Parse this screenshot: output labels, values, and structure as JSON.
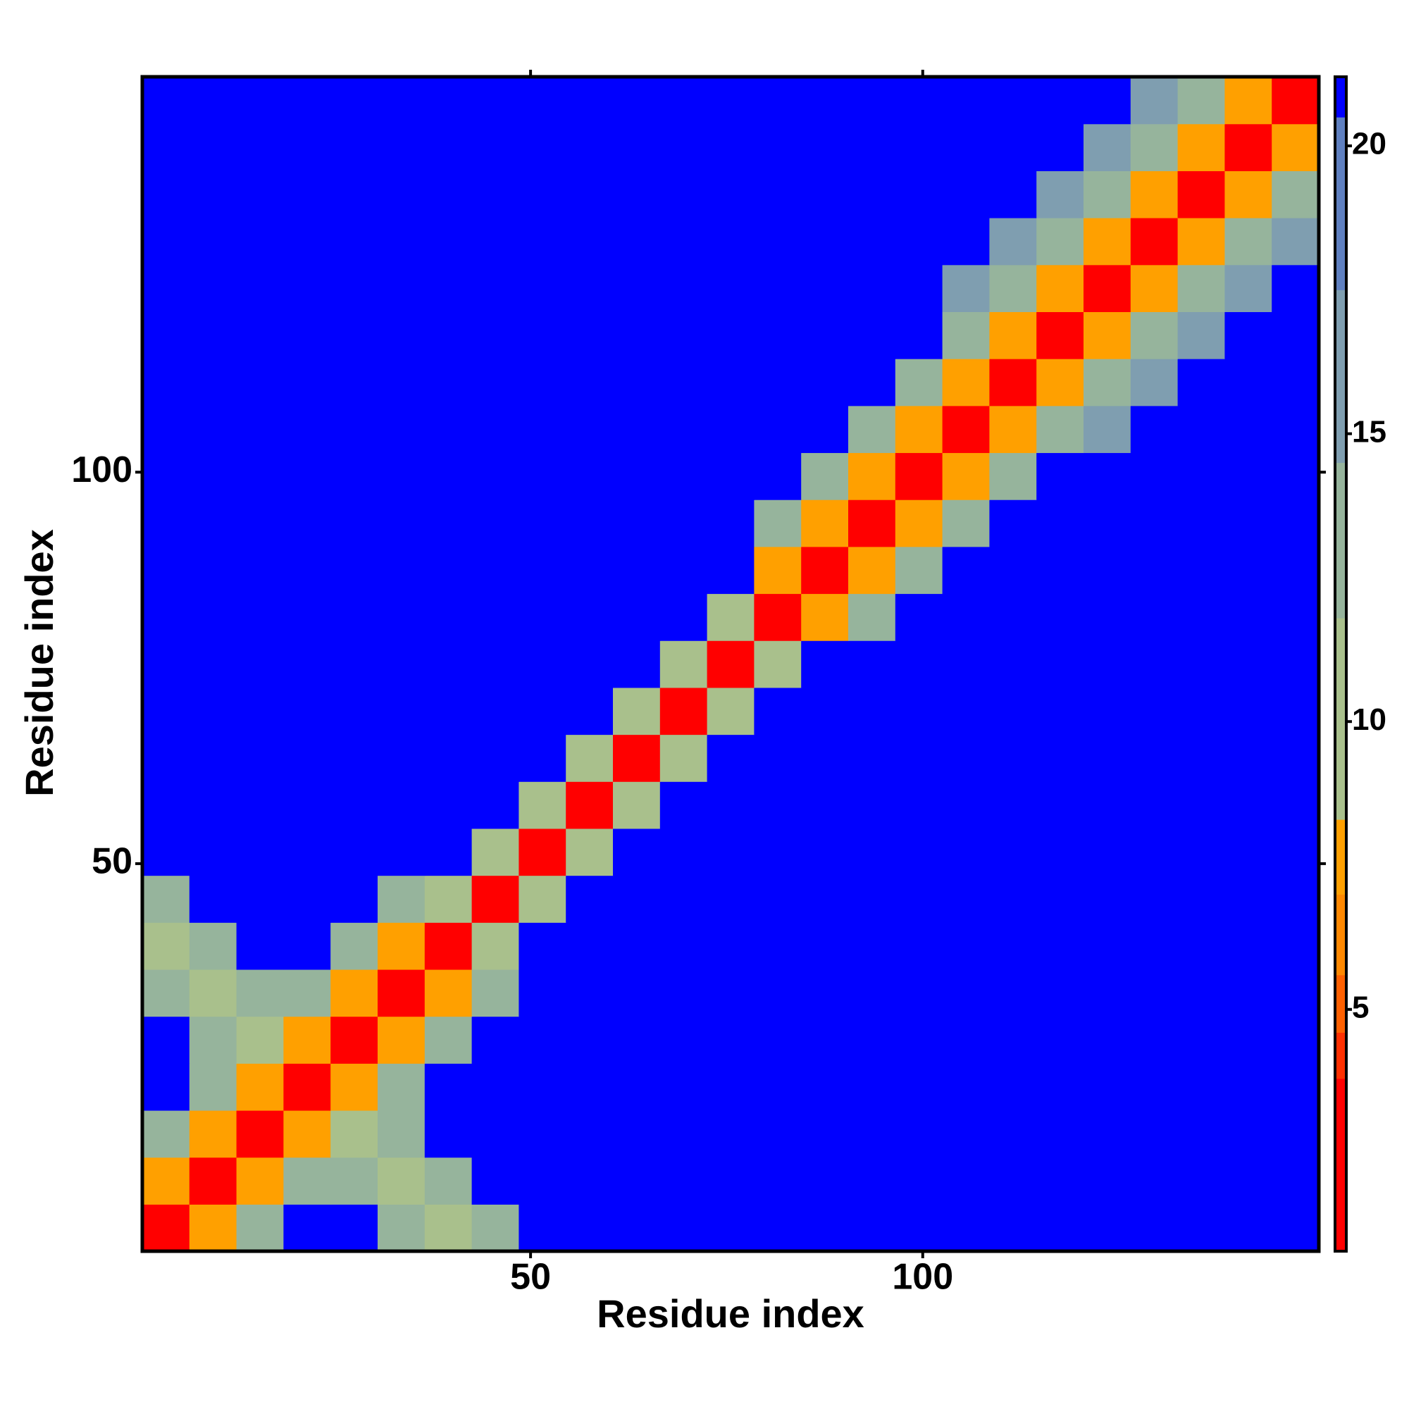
{
  "chart_data": {
    "type": "heatmap",
    "xlabel": "Residue index",
    "ylabel": "Residue index",
    "x": [
      3.5,
      9.5,
      15.5,
      21.5,
      27.5,
      33.5,
      39.5,
      45.5,
      51.5,
      57.5,
      63.5,
      69.5,
      75.5,
      81.5,
      87.5,
      93.5,
      99.5,
      105.5,
      111.5,
      117.5,
      123.5,
      129.5,
      135.5,
      141.5,
      147.5
    ],
    "y": [
      3.5,
      9.5,
      15.5,
      21.5,
      27.5,
      33.5,
      39.5,
      45.5,
      51.5,
      57.5,
      63.5,
      69.5,
      75.5,
      81.5,
      87.5,
      93.5,
      99.5,
      105.5,
      111.5,
      117.5,
      123.5,
      129.5,
      135.5,
      141.5,
      147.5
    ],
    "z": [
      [
        3,
        8,
        14,
        21,
        21,
        12,
        10,
        12,
        21,
        21,
        21,
        21,
        21,
        21,
        21,
        21,
        21,
        21,
        21,
        21,
        21,
        21,
        21,
        21,
        21
      ],
      [
        8,
        3,
        8,
        14,
        12,
        10,
        12,
        21,
        21,
        21,
        21,
        21,
        21,
        21,
        21,
        21,
        21,
        21,
        21,
        21,
        21,
        21,
        21,
        21,
        21
      ],
      [
        14,
        8,
        3,
        8,
        10,
        12,
        21,
        21,
        21,
        21,
        21,
        21,
        21,
        21,
        21,
        21,
        21,
        21,
        21,
        21,
        21,
        21,
        21,
        21,
        21
      ],
      [
        21,
        14,
        8,
        3,
        8,
        14,
        21,
        21,
        21,
        21,
        21,
        21,
        21,
        21,
        21,
        21,
        21,
        21,
        21,
        21,
        21,
        21,
        21,
        21,
        21
      ],
      [
        21,
        12,
        10,
        8,
        3,
        8,
        14,
        21,
        21,
        21,
        21,
        21,
        21,
        21,
        21,
        21,
        21,
        21,
        21,
        21,
        21,
        21,
        21,
        21,
        21
      ],
      [
        12,
        10,
        12,
        14,
        8,
        3,
        8,
        14,
        21,
        21,
        21,
        21,
        21,
        21,
        21,
        21,
        21,
        21,
        21,
        21,
        21,
        21,
        21,
        21,
        21
      ],
      [
        10,
        12,
        21,
        21,
        14,
        8,
        3,
        11,
        21,
        21,
        21,
        21,
        21,
        21,
        21,
        21,
        21,
        21,
        21,
        21,
        21,
        21,
        21,
        21,
        21
      ],
      [
        12,
        21,
        21,
        21,
        21,
        14,
        11,
        3,
        11,
        21,
        21,
        21,
        21,
        21,
        21,
        21,
        21,
        21,
        21,
        21,
        21,
        21,
        21,
        21,
        21
      ],
      [
        21,
        21,
        21,
        21,
        21,
        21,
        21,
        11,
        3,
        11,
        21,
        21,
        21,
        21,
        21,
        21,
        21,
        21,
        21,
        21,
        21,
        21,
        21,
        21,
        21
      ],
      [
        21,
        21,
        21,
        21,
        21,
        21,
        21,
        21,
        11,
        3,
        11,
        21,
        21,
        21,
        21,
        21,
        21,
        21,
        21,
        21,
        21,
        21,
        21,
        21,
        21
      ],
      [
        21,
        21,
        21,
        21,
        21,
        21,
        21,
        21,
        21,
        11,
        3,
        11,
        21,
        21,
        21,
        21,
        21,
        21,
        21,
        21,
        21,
        21,
        21,
        21,
        21
      ],
      [
        21,
        21,
        21,
        21,
        21,
        21,
        21,
        21,
        21,
        21,
        11,
        3,
        11,
        21,
        21,
        21,
        21,
        21,
        21,
        21,
        21,
        21,
        21,
        21,
        21
      ],
      [
        21,
        21,
        21,
        21,
        21,
        21,
        21,
        21,
        21,
        21,
        21,
        11,
        3,
        11,
        21,
        21,
        21,
        21,
        21,
        21,
        21,
        21,
        21,
        21,
        21
      ],
      [
        21,
        21,
        21,
        21,
        21,
        21,
        21,
        21,
        21,
        21,
        21,
        21,
        11,
        3,
        7,
        12,
        21,
        21,
        21,
        21,
        21,
        21,
        21,
        21,
        21
      ],
      [
        21,
        21,
        21,
        21,
        21,
        21,
        21,
        21,
        21,
        21,
        21,
        21,
        21,
        7,
        3,
        7,
        12,
        21,
        21,
        21,
        21,
        21,
        21,
        21,
        21
      ],
      [
        21,
        21,
        21,
        21,
        21,
        21,
        21,
        21,
        21,
        21,
        21,
        21,
        21,
        12,
        7,
        3,
        7,
        12,
        21,
        21,
        21,
        21,
        21,
        21,
        21
      ],
      [
        21,
        21,
        21,
        21,
        21,
        21,
        21,
        21,
        21,
        21,
        21,
        21,
        21,
        21,
        12,
        7,
        3,
        7,
        12,
        21,
        21,
        21,
        21,
        21,
        21
      ],
      [
        21,
        21,
        21,
        21,
        21,
        21,
        21,
        21,
        21,
        21,
        21,
        21,
        21,
        21,
        21,
        12,
        7,
        3,
        7,
        12,
        17,
        21,
        21,
        21,
        21
      ],
      [
        21,
        21,
        21,
        21,
        21,
        21,
        21,
        21,
        21,
        21,
        21,
        21,
        21,
        21,
        21,
        21,
        12,
        7,
        3,
        7,
        12,
        17,
        21,
        21,
        21
      ],
      [
        21,
        21,
        21,
        21,
        21,
        21,
        21,
        21,
        21,
        21,
        21,
        21,
        21,
        21,
        21,
        21,
        21,
        12,
        7,
        3,
        7,
        12,
        17,
        21,
        21
      ],
      [
        21,
        21,
        21,
        21,
        21,
        21,
        21,
        21,
        21,
        21,
        21,
        21,
        21,
        21,
        21,
        21,
        21,
        17,
        12,
        7,
        3,
        7,
        12,
        17,
        21
      ],
      [
        21,
        21,
        21,
        21,
        21,
        21,
        21,
        21,
        21,
        21,
        21,
        21,
        21,
        21,
        21,
        21,
        21,
        21,
        17,
        12,
        7,
        3,
        7,
        12,
        17
      ],
      [
        21,
        21,
        21,
        21,
        21,
        21,
        21,
        21,
        21,
        21,
        21,
        21,
        21,
        21,
        21,
        21,
        21,
        21,
        21,
        17,
        12,
        7,
        3,
        7,
        12
      ],
      [
        21,
        21,
        21,
        21,
        21,
        21,
        21,
        21,
        21,
        21,
        21,
        21,
        21,
        21,
        21,
        21,
        21,
        21,
        21,
        21,
        17,
        12,
        7,
        3,
        7
      ],
      [
        21,
        21,
        21,
        21,
        21,
        21,
        21,
        21,
        21,
        21,
        21,
        21,
        21,
        21,
        21,
        21,
        21,
        21,
        21,
        21,
        21,
        17,
        12,
        7,
        3
      ]
    ],
    "xlim": [
      0.5,
      150.5
    ],
    "ylim": [
      0.5,
      150.5
    ],
    "xticks": [
      50,
      100
    ],
    "yticks": [
      50,
      100
    ],
    "clim": [
      0.8,
      21.2
    ],
    "cticks": [
      5,
      10,
      15,
      20
    ],
    "colorscale": [
      {
        "value": 0.8,
        "color": "#ff0000"
      },
      {
        "value": 3.8,
        "color": "#ff3000"
      },
      {
        "value": 4.6,
        "color": "#ff6000"
      },
      {
        "value": 5.6,
        "color": "#ff8800"
      },
      {
        "value": 7.0,
        "color": "#ffa000"
      },
      {
        "value": 8.3,
        "color": "#a9c08c"
      },
      {
        "value": 11.8,
        "color": "#96b49c"
      },
      {
        "value": 14.5,
        "color": "#7f9eb0"
      },
      {
        "value": 17.5,
        "color": "#5f80c0"
      },
      {
        "value": 20.5,
        "color": "#0000ff"
      }
    ]
  }
}
